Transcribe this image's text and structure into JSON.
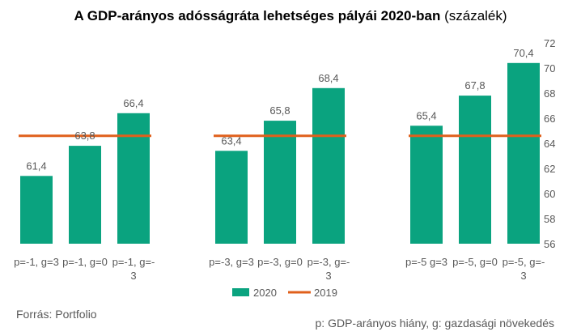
{
  "title": {
    "bold": "A GDP-arányos adósságráta lehetséges pályái 2020-ban",
    "normal": "(százalék)"
  },
  "footer": {
    "source": "Forrás: Portfolio",
    "note": "p: GDP-arányos hiány, g: gazdasági növekedés"
  },
  "colors": {
    "bar": "#0aa37f",
    "line": "#e0601c",
    "text": "#595959"
  },
  "chart_data": {
    "type": "bar",
    "categories": [
      "p=-1, g=3",
      "p=-1, g=0",
      "p=-1, g=-3",
      "p=-3, g=3",
      "p=-3, g=0",
      "p=-3, g=-3",
      "p=-5 g=3",
      "p=-5, g=0",
      "p=-5, g=-3"
    ],
    "groups": [
      [
        0,
        1,
        2
      ],
      [
        3,
        4,
        5
      ],
      [
        6,
        7,
        8
      ]
    ],
    "series": [
      {
        "name": "2020",
        "type": "bar",
        "values": [
          61.4,
          63.8,
          66.4,
          63.4,
          65.8,
          68.4,
          65.4,
          67.8,
          70.4
        ]
      },
      {
        "name": "2019",
        "type": "line",
        "values": [
          64.6,
          64.6,
          64.6,
          64.6,
          64.6,
          64.6,
          64.6,
          64.6,
          64.6
        ]
      }
    ],
    "data_labels": [
      "61,4",
      "63,8",
      "66,4",
      "63,4",
      "65,8",
      "68,4",
      "65,4",
      "67,8",
      "70,4"
    ],
    "y_axis": {
      "position": "right",
      "ylim": [
        56,
        72
      ],
      "ticks": [
        56,
        58,
        60,
        62,
        64,
        66,
        68,
        70,
        72
      ]
    },
    "grid": false,
    "legend": {
      "position": "bottom",
      "entries": [
        "2020",
        "2019"
      ]
    }
  }
}
